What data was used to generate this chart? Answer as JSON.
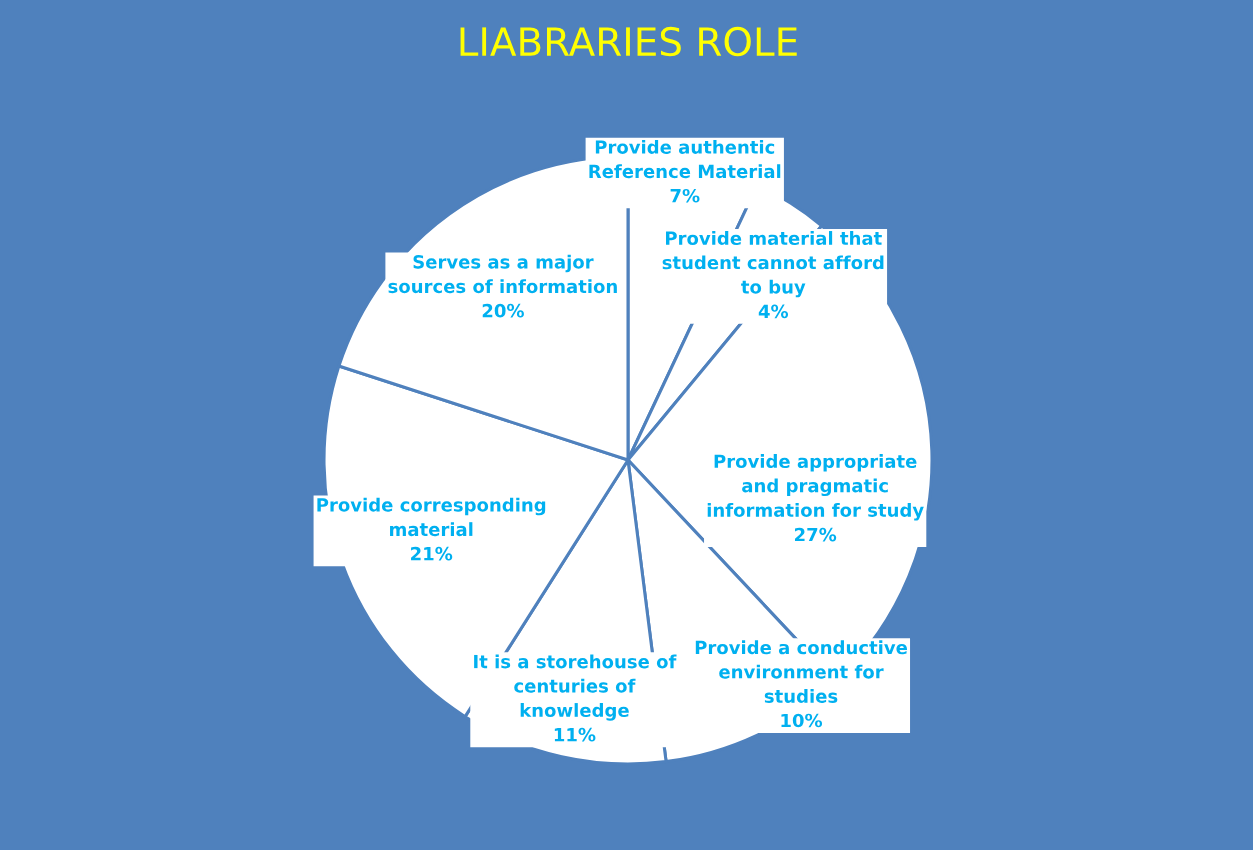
{
  "chart_data": {
    "type": "pie",
    "title": "LIABRARIES ROLE",
    "categories": [
      "Provide authentic\nReference Material",
      "Provide material that\nstudent cannot afford\nto buy",
      "Provide appropriate\nand pragmatic\ninformation for study",
      "Provide a conductive\nenvironment for\nstudies",
      "It is a storehouse of\ncenturies of\nknowledge",
      "Provide corresponding\nmaterial",
      "Serves as a major\nsources of information"
    ],
    "values": [
      7,
      4,
      27,
      10,
      11,
      21,
      20
    ],
    "colors": [
      "#ffffff",
      "#ffffff",
      "#ffffff",
      "#ffffff",
      "#ffffff",
      "#ffffff",
      "#ffffff"
    ],
    "value_labels": [
      "7%",
      "4%",
      "27%",
      "10%",
      "11%",
      "21%",
      "20%"
    ],
    "legend": false
  }
}
